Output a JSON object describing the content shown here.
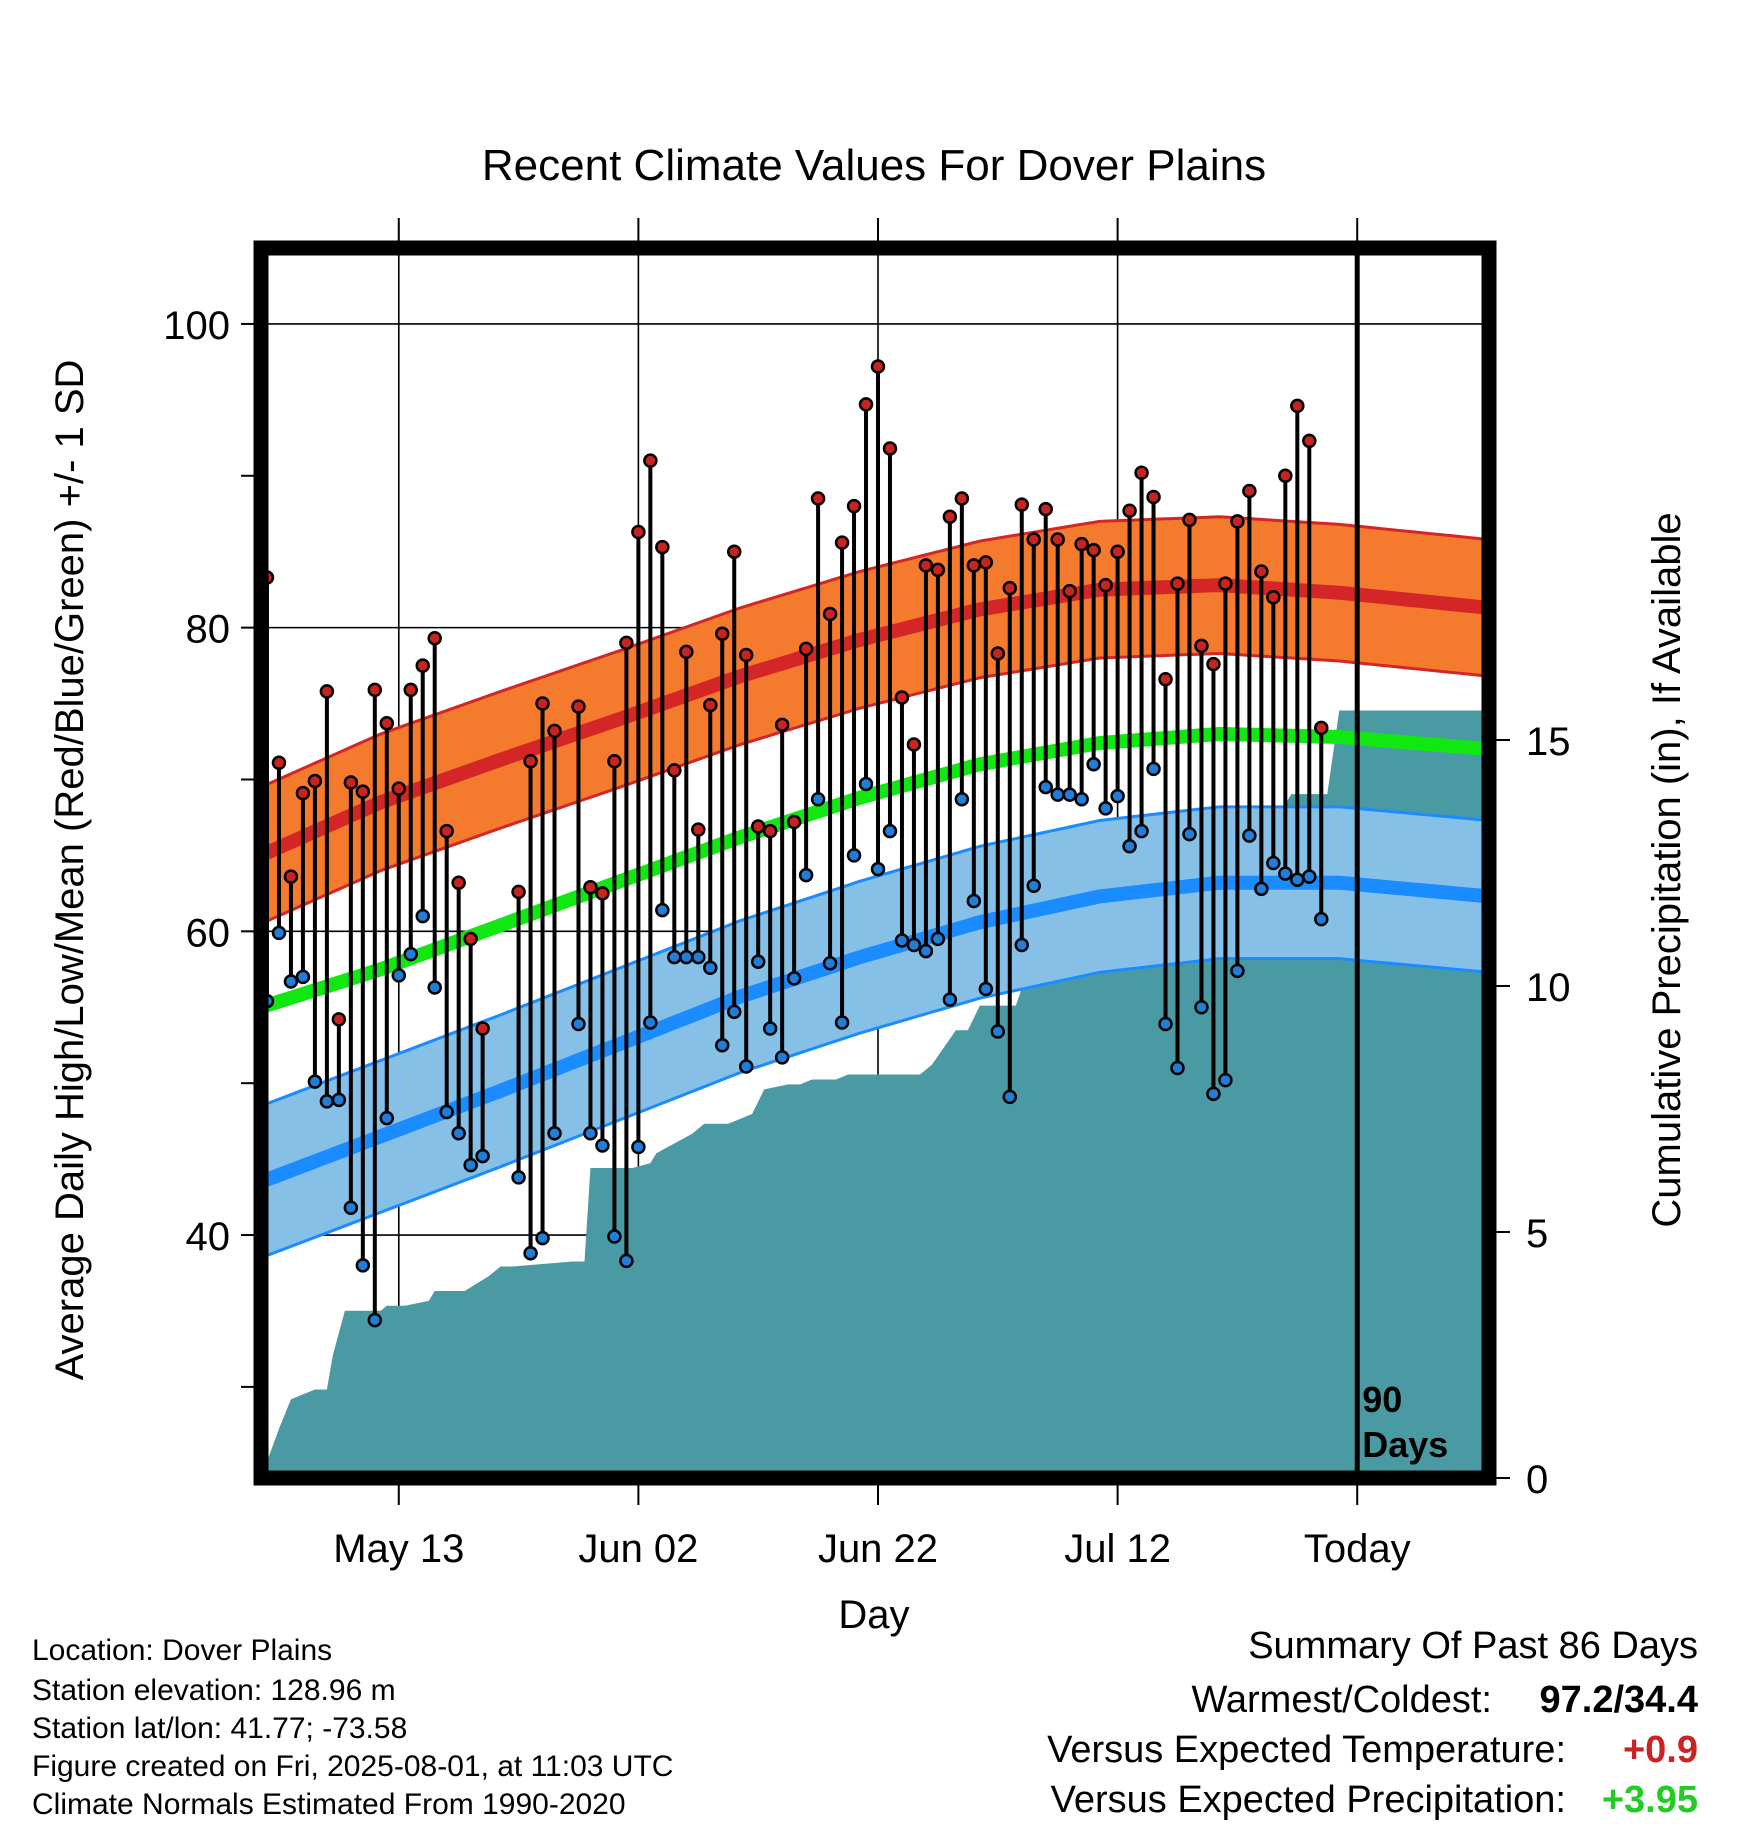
{
  "chart_data": {
    "type": "line",
    "title": "Recent Climate Values For Dover Plains",
    "xlabel": "Day",
    "ylabel": "Average Daily High/Low/Mean (Red/Blue/Green) +/- 1 SD",
    "y2label": "Cumulative Precipitation (in), If Available",
    "ylim": [
      24,
      105
    ],
    "y2lim": [
      0,
      25
    ],
    "xlim": [
      0,
      102.5
    ],
    "grid": true,
    "x_ticks": [
      {
        "day": 11.5,
        "label": "May 13"
      },
      {
        "day": 31.5,
        "label": "Jun 02"
      },
      {
        "day": 51.5,
        "label": "Jun 22"
      },
      {
        "day": 71.5,
        "label": "Jul 12"
      },
      {
        "day": 91.5,
        "label": "Today"
      }
    ],
    "y_ticks": [
      {
        "value": 40,
        "label": "40"
      },
      {
        "value": 60,
        "label": "60"
      },
      {
        "value": 80,
        "label": "80"
      },
      {
        "value": 100,
        "label": "100"
      }
    ],
    "y_minor_ticks": [
      30,
      50,
      70,
      90
    ],
    "y2_ticks": [
      {
        "value": 0,
        "label": "0"
      },
      {
        "value": 5,
        "label": "5"
      },
      {
        "value": 10,
        "label": "10"
      },
      {
        "value": 15,
        "label": "15"
      }
    ],
    "today_marker": {
      "day": 91.5,
      "label_line1": "90",
      "label_line2": "Days"
    },
    "normals": {
      "days": [
        0,
        10,
        20,
        30,
        40,
        50,
        60,
        70,
        80,
        90,
        102.5
      ],
      "high_mean": [
        65,
        68.5,
        71.3,
        74,
        76.8,
        79.2,
        81.2,
        82.5,
        82.8,
        82.3,
        81.3
      ],
      "high_sd": 4.5,
      "low_mean": [
        43.5,
        46.5,
        49.5,
        52.6,
        55.7,
        58.3,
        60.6,
        62.3,
        63.2,
        63.2,
        62.3
      ],
      "low_sd": 5,
      "mean": [
        55,
        57.5,
        60.4,
        63.3,
        66.2,
        68.8,
        71,
        72.4,
        73,
        72.8,
        72
      ]
    },
    "series": [
      {
        "name": "High",
        "values": [
          83.3,
          71.1,
          63.6,
          69.1,
          69.9,
          75.8,
          54.2,
          69.8,
          69.2,
          75.9,
          73.7,
          69.4,
          75.9,
          77.5,
          79.3,
          66.6,
          63.2,
          59.5,
          53.6,
          null,
          null,
          62.6,
          71.2,
          75,
          73.2,
          null,
          74.8,
          62.9,
          62.5,
          71.2,
          79,
          86.3,
          91,
          85.3,
          70.6,
          78.4,
          66.7,
          74.9,
          79.6,
          85,
          78.2,
          66.9,
          66.6,
          73.6,
          67.2,
          78.6,
          88.5,
          80.9,
          85.6,
          88,
          94.7,
          97.2,
          91.8,
          75.4,
          72.3,
          84.1,
          83.8,
          87.3,
          88.5,
          84.1,
          84.3,
          78.3,
          82.6,
          88.1,
          85.8,
          87.8,
          85.8,
          82.4,
          85.5,
          85.1,
          82.8,
          85,
          87.7,
          90.2,
          88.6,
          76.6,
          82.9,
          87.1,
          78.8,
          77.6,
          82.9,
          87,
          89,
          83.7,
          82,
          90,
          94.6,
          92.3,
          73.4
        ]
      },
      {
        "name": "Low",
        "values": [
          55.4,
          59.9,
          56.7,
          57,
          50.1,
          48.8,
          48.9,
          41.8,
          38,
          34.4,
          47.7,
          57.1,
          58.5,
          61,
          56.3,
          48.1,
          46.7,
          44.6,
          45.2,
          null,
          null,
          43.8,
          38.8,
          39.8,
          46.7,
          null,
          53.9,
          46.7,
          45.9,
          39.9,
          38.3,
          45.8,
          54,
          61.4,
          58.3,
          58.3,
          58.3,
          57.6,
          52.5,
          54.7,
          51.1,
          58,
          53.6,
          51.7,
          56.9,
          63.7,
          68.7,
          57.9,
          54,
          65,
          69.7,
          64.1,
          66.6,
          59.4,
          59.1,
          58.7,
          59.5,
          55.5,
          68.7,
          62,
          56.2,
          53.4,
          49.1,
          59.1,
          63,
          69.5,
          69,
          69,
          68.7,
          71,
          68.1,
          68.9,
          65.6,
          66.6,
          70.7,
          53.9,
          51,
          66.4,
          55,
          49.3,
          50.2,
          57.4,
          66.3,
          62.8,
          64.5,
          63.8,
          63.4,
          63.6,
          60.8
        ]
      },
      {
        "name": "Precipitation",
        "days": [
          0,
          1.5,
          2.5,
          4.5,
          5.5,
          6,
          7,
          8.5,
          10,
          10.5,
          12,
          14,
          14.5,
          16,
          17,
          19,
          20,
          21,
          26,
          27,
          27.5,
          28,
          29,
          30,
          31,
          32.5,
          33,
          36,
          37,
          38,
          39,
          40,
          41,
          42,
          44,
          45,
          46,
          48,
          49,
          50,
          51,
          52,
          53,
          54,
          55,
          56,
          58,
          59,
          60,
          61,
          63,
          64,
          65,
          66,
          67,
          68,
          70,
          71,
          72,
          72.5,
          73,
          74,
          75,
          76,
          77,
          78,
          79,
          80,
          81,
          82,
          83,
          84,
          85,
          86,
          87,
          88,
          89,
          90,
          91,
          92,
          93,
          102.5
        ],
        "values": [
          0,
          1,
          1.6,
          1.8,
          1.8,
          2.5,
          3.4,
          3.4,
          3.4,
          3.5,
          3.5,
          3.6,
          3.8,
          3.8,
          3.8,
          4.1,
          4.3,
          4.3,
          4.4,
          4.4,
          6.3,
          6.3,
          6.3,
          6.3,
          6.3,
          6.4,
          6.6,
          7,
          7.2,
          7.2,
          7.2,
          7.3,
          7.4,
          7.9,
          8,
          8,
          8.1,
          8.1,
          8.2,
          8.2,
          8.2,
          8.2,
          8.2,
          8.2,
          8.2,
          8.4,
          9.1,
          9.1,
          9.6,
          9.6,
          9.6,
          10.3,
          10.7,
          11.2,
          12.2,
          12.5,
          12.5,
          12.5,
          12.8,
          12.9,
          12.9,
          12.9,
          12.9,
          12.9,
          12.9,
          12.9,
          12.9,
          12.9,
          12.9,
          12.9,
          12.9,
          13.5,
          13.5,
          13.9,
          13.9,
          13.9,
          13.9,
          15.6,
          15.6,
          15.6,
          15.6,
          15.6
        ]
      }
    ]
  },
  "info": {
    "location": "Location: Dover Plains",
    "elevation": "Station elevation: 128.96 m",
    "latlon": "Station lat/lon: 41.77; -73.58",
    "created": "Figure created on Fri, 2025-08-01, at 11:03 UTC",
    "normals": "Climate Normals Estimated From 1990-2020"
  },
  "summary": {
    "heading": "Summary Of Past 86 Days",
    "warm_cold_label": "Warmest/Coldest:",
    "warm_cold_value": "97.2/34.4",
    "temp_label": "Versus Expected Temperature:",
    "temp_value": "+0.9",
    "precip_label": "Versus Expected Precipitation:",
    "precip_value": "+3.95"
  },
  "colors": {
    "high_band": "#f47a2e",
    "high_line": "#d42626",
    "low_band": "#86c0e7",
    "low_line": "#1a8cff",
    "mean_line": "#11e711",
    "precip_fill": "#4a9aa3",
    "high_dot": "#c8241f",
    "low_dot": "#1f7fd8",
    "temp_value": "#cc2222",
    "precip_value": "#22cc22"
  }
}
